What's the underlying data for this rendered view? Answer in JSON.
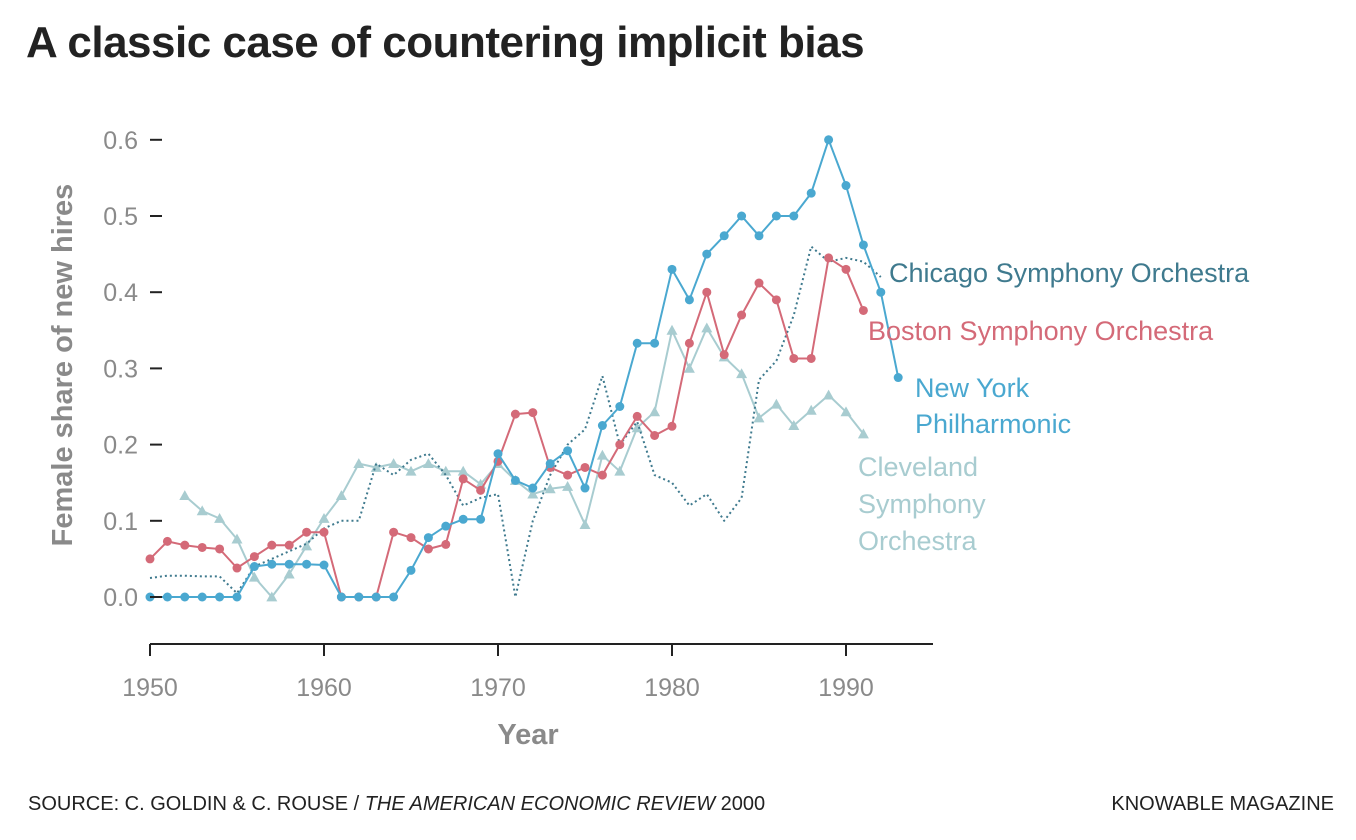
{
  "title": "A classic case of countering implicit bias",
  "footer": {
    "source_prefix": "SOURCE: C. GOLDIN & C. ROUSE / ",
    "source_journal": "THE AMERICAN ECONOMIC REVIEW",
    "source_year": " 2000",
    "brand": "KNOWABLE MAGAZINE"
  },
  "chart_data": {
    "type": "line",
    "title": "A classic case of countering implicit bias",
    "xlabel": "Year",
    "ylabel": "Female share of new hires",
    "xlim": [
      1950,
      1995
    ],
    "ylim": [
      -0.06,
      0.62
    ],
    "x_ticks": [
      1950,
      1960,
      1970,
      1980,
      1990
    ],
    "x_tick_labels": [
      "1950",
      "1960",
      "1970",
      "1980",
      "1990"
    ],
    "y_ticks": [
      0,
      0.1,
      0.2,
      0.3,
      0.4,
      0.5,
      0.6
    ],
    "y_tick_labels": [
      "0.0",
      "0.1",
      "0.2",
      "0.3",
      "0.4",
      "0.5",
      "0.6"
    ],
    "grid": false,
    "legend": "direct labels at line ends",
    "series": [
      {
        "name": "Chicago Symphony Orchestra",
        "label_lines": [
          "Chicago Symphony Orchestra"
        ],
        "color": "#3f7a8e",
        "style": "dotted",
        "marker": "none",
        "x": [
          1950,
          1951,
          1952,
          1953,
          1954,
          1955,
          1956,
          1957,
          1958,
          1959,
          1960,
          1961,
          1962,
          1963,
          1964,
          1965,
          1966,
          1967,
          1968,
          1969,
          1970,
          1971,
          1972,
          1973,
          1974,
          1975,
          1976,
          1977,
          1978,
          1979,
          1980,
          1981,
          1982,
          1983,
          1984,
          1985,
          1986,
          1987,
          1988,
          1989,
          1990,
          1991,
          1992
        ],
        "values": [
          0.025,
          0.028,
          0.028,
          0.027,
          0.027,
          0.005,
          0.04,
          0.05,
          0.06,
          0.07,
          0.09,
          0.1,
          0.1,
          0.175,
          0.16,
          0.18,
          0.188,
          0.16,
          0.12,
          0.13,
          0.135,
          0.0,
          0.1,
          0.16,
          0.2,
          0.22,
          0.29,
          0.2,
          0.23,
          0.16,
          0.15,
          0.12,
          0.135,
          0.1,
          0.13,
          0.285,
          0.31,
          0.37,
          0.46,
          0.44,
          0.445,
          0.44,
          0.42
        ]
      },
      {
        "name": "Boston Symphony Orchestra",
        "label_lines": [
          "Boston Symphony Orchestra"
        ],
        "color": "#d46a78",
        "style": "solid",
        "marker": "circle",
        "x": [
          1950,
          1951,
          1952,
          1953,
          1954,
          1955,
          1956,
          1957,
          1958,
          1959,
          1960,
          1961,
          1962,
          1963,
          1964,
          1965,
          1966,
          1967,
          1968,
          1969,
          1970,
          1971,
          1972,
          1973,
          1974,
          1975,
          1976,
          1977,
          1978,
          1979,
          1980,
          1981,
          1982,
          1983,
          1984,
          1985,
          1986,
          1987,
          1988,
          1989,
          1990,
          1991
        ],
        "values": [
          0.05,
          0.073,
          0.068,
          0.065,
          0.063,
          0.038,
          0.053,
          0.068,
          0.068,
          0.085,
          0.085,
          0.0,
          0.0,
          0.0,
          0.085,
          0.078,
          0.063,
          0.069,
          0.155,
          0.14,
          0.178,
          0.24,
          0.242,
          0.17,
          0.16,
          0.17,
          0.16,
          0.2,
          0.237,
          0.212,
          0.224,
          0.333,
          0.4,
          0.318,
          0.37,
          0.412,
          0.39,
          0.313,
          0.313,
          0.445,
          0.43,
          0.376
        ]
      },
      {
        "name": "New York Philharmonic",
        "label_lines": [
          "New York",
          "Philharmonic"
        ],
        "color": "#4aa8d0",
        "style": "solid",
        "marker": "circle",
        "x": [
          1950,
          1951,
          1952,
          1953,
          1954,
          1955,
          1956,
          1957,
          1958,
          1959,
          1960,
          1961,
          1962,
          1963,
          1964,
          1965,
          1966,
          1967,
          1968,
          1969,
          1970,
          1971,
          1972,
          1973,
          1974,
          1975,
          1976,
          1977,
          1978,
          1979,
          1980,
          1981,
          1982,
          1983,
          1984,
          1985,
          1986,
          1987,
          1988,
          1989,
          1990,
          1991,
          1992,
          1993
        ],
        "values": [
          0.0,
          0.0,
          0.0,
          0.0,
          0.0,
          0.0,
          0.04,
          0.043,
          0.043,
          0.043,
          0.042,
          0.0,
          0.0,
          0.0,
          0.0,
          0.035,
          0.078,
          0.093,
          0.102,
          0.102,
          0.188,
          0.153,
          0.143,
          0.175,
          0.192,
          0.143,
          0.225,
          0.25,
          0.333,
          0.333,
          0.43,
          0.39,
          0.45,
          0.474,
          0.5,
          0.474,
          0.5,
          0.5,
          0.53,
          0.6,
          0.54,
          0.462,
          0.4,
          0.288
        ]
      },
      {
        "name": "Cleveland Symphony Orchestra",
        "label_lines": [
          "Cleveland",
          "Symphony",
          "Orchestra"
        ],
        "color": "#a8ccd0",
        "style": "solid",
        "marker": "triangle",
        "x": [
          1952,
          1953,
          1954,
          1955,
          1956,
          1957,
          1958,
          1959,
          1960,
          1961,
          1962,
          1963,
          1964,
          1965,
          1966,
          1967,
          1968,
          1969,
          1970,
          1971,
          1972,
          1973,
          1974,
          1975,
          1976,
          1977,
          1978,
          1979,
          1980,
          1981,
          1982,
          1983,
          1984,
          1985,
          1986,
          1987,
          1988,
          1989,
          1990,
          1991
        ],
        "values": [
          0.133,
          0.113,
          0.103,
          0.076,
          0.026,
          0.0,
          0.03,
          0.067,
          0.103,
          0.133,
          0.175,
          0.17,
          0.175,
          0.165,
          0.175,
          0.165,
          0.165,
          0.148,
          0.175,
          0.153,
          0.135,
          0.142,
          0.145,
          0.095,
          0.186,
          0.165,
          0.222,
          0.243,
          0.35,
          0.3,
          0.353,
          0.315,
          0.293,
          0.235,
          0.253,
          0.225,
          0.245,
          0.265,
          0.243,
          0.214
        ]
      }
    ]
  }
}
